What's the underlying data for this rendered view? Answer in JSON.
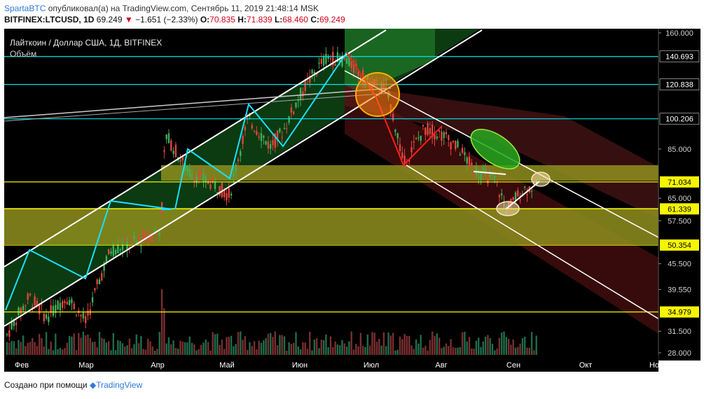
{
  "header": {
    "author": "SpartaBTC",
    "published_text": "опубликовал(а) на TradingView.com, Сентябрь 11, 2019 21:48:14 MSK",
    "symbol": "BITFINEX:LTCUSD, 1D",
    "last": "69.249",
    "change": "−1.651 (−2.33%)",
    "o_label": "O:",
    "o_val": "70.835",
    "h_label": "H:",
    "h_val": "71.839",
    "l_label": "L:",
    "l_val": "68.460",
    "c_label": "C:",
    "c_val": "69.249"
  },
  "footer": {
    "created": "Создано при помощи",
    "brand": "TradingView"
  },
  "chart_data": {
    "type": "candlestick",
    "title": "Лайткоин / Доллар США, 1Д, BITFINEX",
    "subtitle": "Объём",
    "x_ticks": [
      "Фев",
      "Мар",
      "Апр",
      "Май",
      "Июн",
      "Июл",
      "Авг",
      "Сен",
      "Окт",
      "Но"
    ],
    "y_ticks": [
      "160.000",
      "85.000",
      "65.000",
      "57.500",
      "45.500",
      "39.550",
      "31.500",
      "28.000"
    ],
    "y_scale": "log",
    "price_labels": [
      {
        "text": "140.693",
        "bg": "#000000",
        "fg": "#ffffff"
      },
      {
        "text": "120.838",
        "bg": "#000000",
        "fg": "#ffffff"
      },
      {
        "text": "100.206",
        "bg": "#000000",
        "fg": "#ffffff"
      },
      {
        "text": "71.034",
        "bg": "#f5f500",
        "fg": "#000000"
      },
      {
        "text": "61.339",
        "bg": "#f5f500",
        "fg": "#000000"
      },
      {
        "text": "50.354",
        "bg": "#f5f500",
        "fg": "#000000"
      },
      {
        "text": "34.979",
        "bg": "#f5f500",
        "fg": "#000000"
      }
    ],
    "horizontal_levels": [
      140.693,
      120.838,
      100.206,
      71.034,
      61.339,
      50.354,
      34.979
    ],
    "zones": [
      {
        "name": "upper support zone",
        "from": 71.0,
        "to": 77.0,
        "color": "#bcbc2a"
      },
      {
        "name": "lower support zone",
        "from": 50.354,
        "to": 61.339,
        "color": "#bcbc2a"
      }
    ],
    "colors": {
      "up": "#3fae58",
      "down": "#e2443e",
      "channel_up": "#1f7a2a",
      "channel_down": "#7a1d1d",
      "accent": "#00e5e5",
      "level": "#f5f500"
    }
  }
}
